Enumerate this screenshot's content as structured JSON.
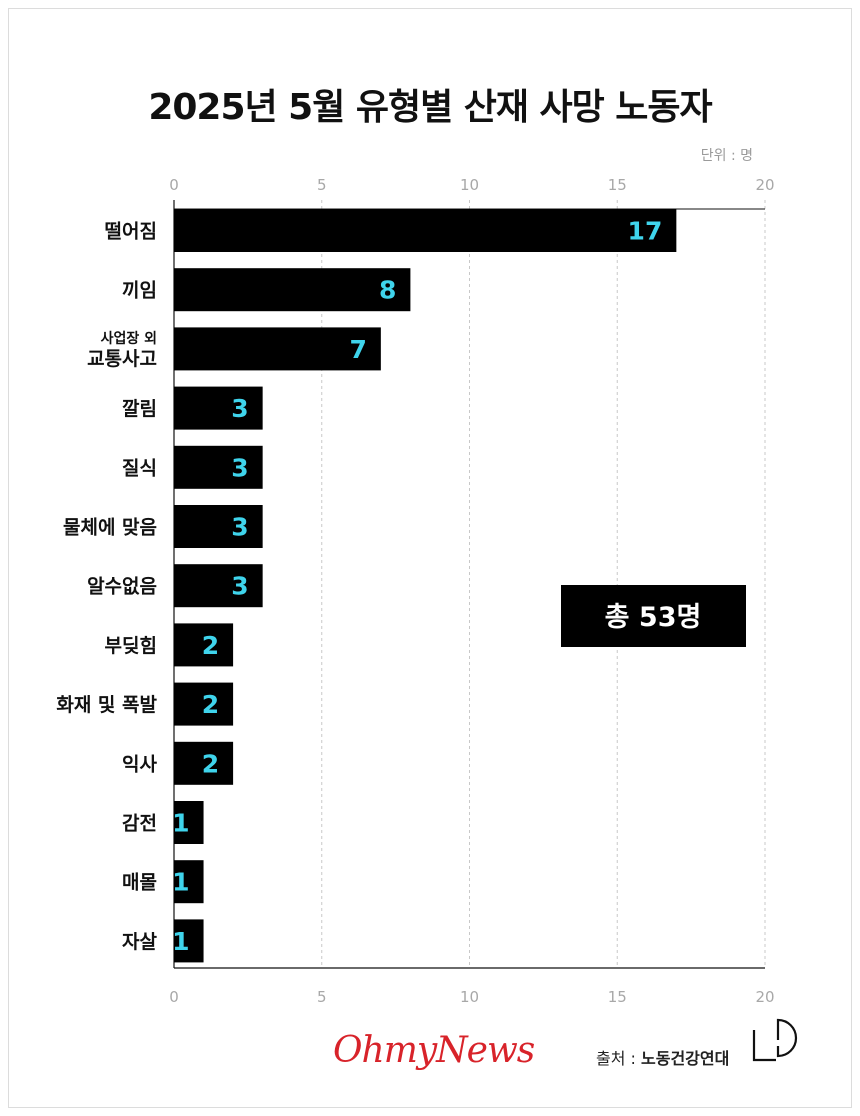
{
  "chart_data": {
    "type": "bar",
    "orientation": "horizontal",
    "title": "2025년 5월 유형별 산재 사망 노동자",
    "unit_label": "단위 : 명",
    "categories": [
      [
        "떨어짐"
      ],
      [
        "끼임"
      ],
      [
        "사업장 외",
        "교통사고"
      ],
      [
        "깔림"
      ],
      [
        "질식"
      ],
      [
        "물체에 맞음"
      ],
      [
        "알수없음"
      ],
      [
        "부딪힘"
      ],
      [
        "화재 및 폭발"
      ],
      [
        "익사"
      ],
      [
        "감전"
      ],
      [
        "매몰"
      ],
      [
        "자살"
      ]
    ],
    "values": [
      17,
      8,
      7,
      3,
      3,
      3,
      3,
      2,
      2,
      2,
      1,
      1,
      1
    ],
    "xlim": [
      0,
      20
    ],
    "xticks": [
      "0",
      "5",
      "10",
      "15",
      "20"
    ],
    "grid": true,
    "bar_color": "#000000",
    "label_color": "#3fd4ec",
    "annotation": "총 53명"
  },
  "footer": {
    "logo_text": "OhmyNews",
    "source_label": "출처 :",
    "source_name": "노동건강연대"
  },
  "colors": {
    "logo": "#d8232a",
    "grid": "#c8c8c8"
  }
}
